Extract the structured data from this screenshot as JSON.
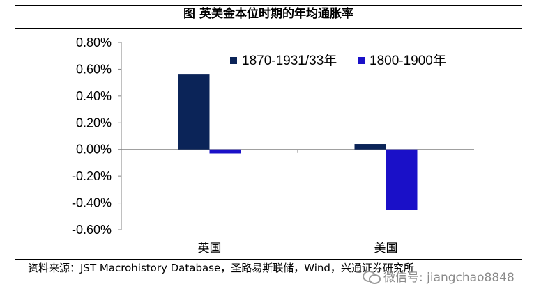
{
  "chart_data": {
    "type": "bar",
    "title": "图 英美金本位时期的年均通胀率",
    "categories": [
      "英国",
      "美国"
    ],
    "series": [
      {
        "name": "1870-1931/33年",
        "color": "#0b2458",
        "values": [
          0.56,
          0.04
        ]
      },
      {
        "name": "1800-1900年",
        "color": "#1a10c8",
        "values": [
          -0.03,
          -0.45
        ]
      }
    ],
    "ylim": [
      -0.6,
      0.8
    ],
    "yticks": [
      "0.80%",
      "0.60%",
      "0.40%",
      "0.20%",
      "0.00%",
      "-0.20%",
      "-0.40%",
      "-0.60%"
    ],
    "ytick_values": [
      0.8,
      0.6,
      0.4,
      0.2,
      0.0,
      -0.2,
      -0.4,
      -0.6
    ],
    "legend_position": "top-right",
    "xlabel": "",
    "ylabel": ""
  },
  "source": "资料来源：JST Macrohistory Database，圣路易斯联储，Wind，兴通证券研究所",
  "watermark": "微信号: jiangchao8848"
}
